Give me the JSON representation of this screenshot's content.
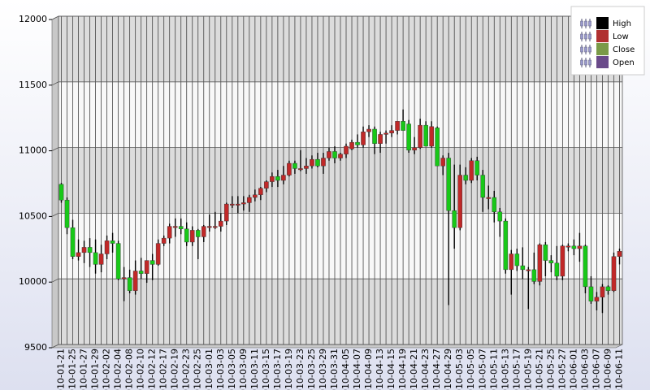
{
  "chart_data": {
    "type": "candlestick",
    "categories": [
      "2010-01-21",
      null,
      "2010-01-25",
      null,
      "2010-01-27",
      null,
      "2010-01-29",
      null,
      "2010-02-02",
      null,
      "2010-02-04",
      null,
      "2010-02-08",
      null,
      "2010-02-10",
      null,
      "2010-02-12",
      null,
      "2010-02-17",
      null,
      "2010-02-19",
      null,
      "2010-02-23",
      null,
      "2010-02-25",
      null,
      "2010-03-01",
      null,
      "2010-03-03",
      null,
      "2010-03-05",
      null,
      "2010-03-09",
      null,
      "2010-03-11",
      null,
      "2010-03-15",
      null,
      "2010-03-17",
      null,
      "2010-03-19",
      null,
      "2010-03-23",
      null,
      "2010-03-25",
      null,
      "2010-03-29",
      null,
      "2010-03-31",
      null,
      "2010-04-05",
      null,
      "2010-04-07",
      null,
      "2010-04-09",
      null,
      "2010-04-13",
      null,
      "2010-04-15",
      null,
      "2010-04-19",
      null,
      "2010-04-21",
      null,
      "2010-04-23",
      null,
      "2010-04-27",
      null,
      "2010-04-29",
      null,
      "2010-05-03",
      null,
      "2010-05-05",
      null,
      "2010-05-07",
      null,
      "2010-05-11",
      null,
      "2010-05-13",
      null,
      "2010-05-17",
      null,
      "2010-05-19",
      null,
      "2010-05-21",
      null,
      "2010-05-25",
      null,
      "2010-05-27",
      null,
      "2010-06-01",
      null,
      "2010-06-03",
      null,
      "2010-06-07",
      null,
      "2010-06-09",
      null,
      "2010-06-11"
    ],
    "series": [
      {
        "name": "High",
        "color": "#000000",
        "values": [
          10730,
          10620,
          10450,
          10300,
          10290,
          10310,
          10300,
          10260,
          10330,
          10350,
          10290,
          10090,
          10070,
          10140,
          10160,
          10140,
          10190,
          10300,
          10330,
          10420,
          10460,
          10460,
          10430,
          10400,
          10380,
          10410,
          10490,
          10510,
          10500,
          10580,
          10630,
          10630,
          10630,
          10640,
          10680,
          10700,
          10750,
          10810,
          10830,
          10860,
          10900,
          10900,
          10980,
          10920,
          10940,
          10960,
          10960,
          11000,
          11010,
          10960,
          11030,
          11060,
          11100,
          11160,
          11170,
          11160,
          11120,
          11130,
          11170,
          11200,
          11290,
          11210,
          11080,
          11220,
          11200,
          11200,
          11160,
          10940,
          10960,
          10870,
          10870,
          10850,
          10920,
          10930,
          10830,
          10710,
          10670,
          10540,
          10460,
          10220,
          10230,
          10240,
          10090,
          10200,
          10270,
          10280,
          10180,
          10250,
          10260,
          10270,
          10300,
          10350,
          10260,
          10020,
          9900,
          9960,
          9950,
          10200,
          10230
        ]
      },
      {
        "name": "Low",
        "color": "#b03030",
        "values": [
          10580,
          10340,
          10150,
          10140,
          10120,
          10090,
          10040,
          10050,
          10150,
          10200,
          9990,
          9830,
          9890,
          9880,
          10000,
          9970,
          9990,
          10100,
          10250,
          10270,
          10320,
          10340,
          10250,
          10250,
          10150,
          10280,
          10360,
          10380,
          10360,
          10410,
          10540,
          10500,
          10520,
          10510,
          10590,
          10600,
          10660,
          10700,
          10700,
          10720,
          10780,
          10800,
          10820,
          10800,
          10840,
          10850,
          10800,
          10900,
          10880,
          10900,
          10920,
          10980,
          11000,
          11000,
          11080,
          10950,
          10960,
          11030,
          11080,
          11100,
          11170,
          10960,
          10950,
          10990,
          11120,
          11000,
          10910,
          10790,
          9800,
          10230,
          10370,
          10720,
          10730,
          10750,
          10510,
          10530,
          10430,
          10320,
          10040,
          9880,
          10060,
          10000,
          9770,
          9960,
          9950,
          10020,
          10050,
          9990,
          9990,
          10210,
          10180,
          10130,
          9890,
          9810,
          9760,
          9740,
          9880,
          9900,
          10110
        ]
      },
      {
        "name": "Close",
        "color": "#7a9a48",
        "values": [
          10600,
          10390,
          10170,
          10200,
          10240,
          10200,
          10110,
          10190,
          10290,
          10270,
          10000,
          10010,
          9910,
          10060,
          10040,
          10140,
          10110,
          10270,
          10310,
          10400,
          10400,
          10380,
          10280,
          10370,
          10320,
          10400,
          10400,
          10400,
          10440,
          10570,
          10570,
          10570,
          10580,
          10620,
          10640,
          10690,
          10740,
          10780,
          10750,
          10790,
          10880,
          10840,
          10840,
          10860,
          10910,
          10860,
          10920,
          10970,
          10920,
          10950,
          11010,
          11040,
          11020,
          11120,
          11140,
          11030,
          11100,
          11110,
          11130,
          11200,
          11130,
          10980,
          11000,
          11170,
          11010,
          11160,
          10860,
          10920,
          10520,
          10390,
          10790,
          10750,
          10900,
          10790,
          10620,
          10620,
          10510,
          10440,
          10070,
          10190,
          10100,
          10070,
          10070,
          9980,
          10260,
          10140,
          10120,
          10020,
          10250,
          10250,
          10230,
          10250,
          9940,
          9830,
          9860,
          9940,
          9910,
          10170,
          10210
        ]
      },
      {
        "name": "Open",
        "color": "#6a4a8a",
        "values": [
          10720,
          10600,
          10390,
          10170,
          10200,
          10240,
          10200,
          10110,
          10190,
          10290,
          10270,
          10000,
          10010,
          9910,
          10060,
          10040,
          10140,
          10110,
          10270,
          10310,
          10400,
          10400,
          10380,
          10280,
          10370,
          10320,
          10400,
          10400,
          10400,
          10440,
          10570,
          10570,
          10570,
          10580,
          10620,
          10640,
          10690,
          10740,
          10780,
          10750,
          10790,
          10880,
          10840,
          10840,
          10860,
          10910,
          10860,
          10920,
          10970,
          10920,
          10950,
          10990,
          11040,
          11020,
          11120,
          11140,
          11030,
          11100,
          11110,
          11130,
          11200,
          11180,
          10980,
          11000,
          11170,
          11010,
          11150,
          10860,
          10920,
          10520,
          10390,
          10790,
          10750,
          10900,
          10790,
          10620,
          10620,
          10510,
          10440,
          10070,
          10190,
          10100,
          10070,
          10070,
          9980,
          10260,
          10140,
          10120,
          10020,
          10250,
          10250,
          10230,
          10250,
          9940,
          9830,
          9860,
          9940,
          9910,
          10170
        ]
      }
    ],
    "up_color": "#c02828",
    "down_color": "#18c818",
    "ylim": [
      9500,
      12000
    ],
    "yticks": [
      9500,
      10000,
      10500,
      11000,
      11500,
      12000
    ],
    "grid": true,
    "legend": "top-right"
  }
}
